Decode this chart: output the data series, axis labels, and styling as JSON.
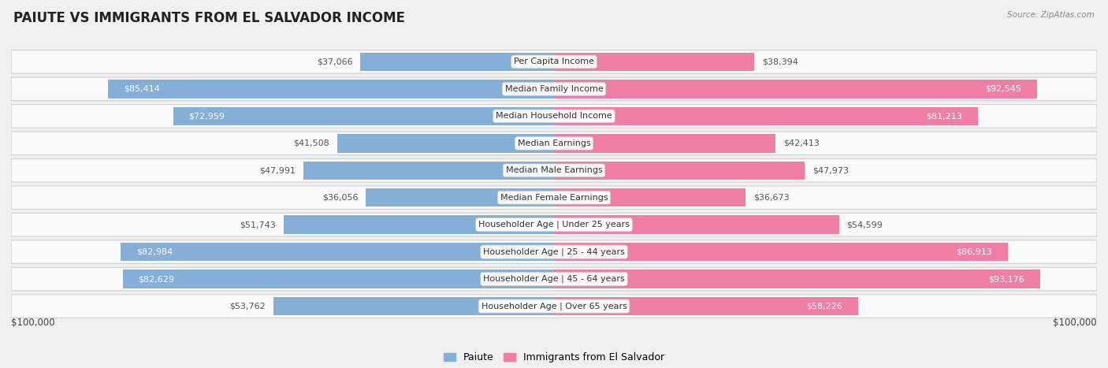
{
  "title": "PAIUTE VS IMMIGRANTS FROM EL SALVADOR INCOME",
  "source": "Source: ZipAtlas.com",
  "categories": [
    "Per Capita Income",
    "Median Family Income",
    "Median Household Income",
    "Median Earnings",
    "Median Male Earnings",
    "Median Female Earnings",
    "Householder Age | Under 25 years",
    "Householder Age | 25 - 44 years",
    "Householder Age | 45 - 64 years",
    "Householder Age | Over 65 years"
  ],
  "paiute_values": [
    37066,
    85414,
    72959,
    41508,
    47991,
    36056,
    51743,
    82984,
    82629,
    53762
  ],
  "immigrant_values": [
    38394,
    92545,
    81213,
    42413,
    47973,
    36673,
    54599,
    86913,
    93176,
    58226
  ],
  "paiute_labels": [
    "$37,066",
    "$85,414",
    "$72,959",
    "$41,508",
    "$47,991",
    "$36,056",
    "$51,743",
    "$82,984",
    "$82,629",
    "$53,762"
  ],
  "immigrant_labels": [
    "$38,394",
    "$92,545",
    "$81,213",
    "$42,413",
    "$47,973",
    "$36,673",
    "$54,599",
    "$86,913",
    "$93,176",
    "$58,226"
  ],
  "max_value": 100000,
  "paiute_color": "#85afd6",
  "immigrant_color": "#f07fa5",
  "bg_color": "#f0f0f0",
  "row_bg_color": "#fafafa",
  "row_border_color": "#d0d0d0",
  "legend_paiute": "Paiute",
  "legend_immigrant": "Immigrants from El Salvador",
  "xlabel_left": "$100,000",
  "xlabel_right": "$100,000",
  "white_label_threshold": 58000,
  "title_fontsize": 12,
  "label_fontsize": 8,
  "category_fontsize": 8,
  "legend_fontsize": 9
}
